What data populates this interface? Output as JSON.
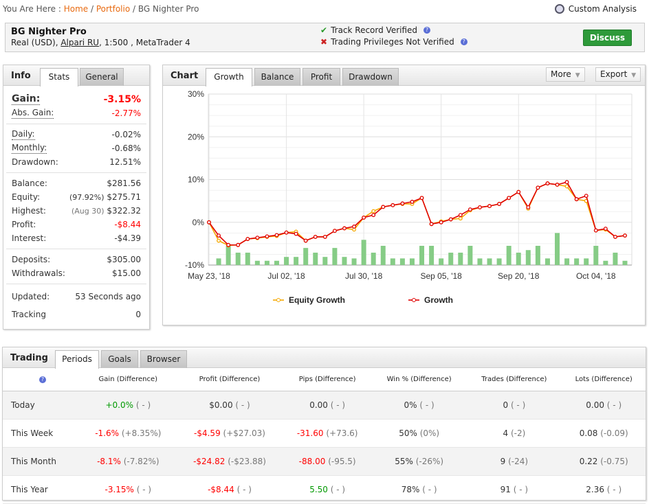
{
  "breadcrumb": {
    "prefix": "You Are Here :",
    "home": "Home",
    "portfolio": "Portfolio",
    "current": "BG Nighter Pro"
  },
  "custom_analysis": "Custom Analysis",
  "header": {
    "name": "BG Nighter Pro",
    "account": "Real (USD),",
    "broker": "Alpari RU",
    "details": ", 1:500 , MetaTrader 4",
    "track_record": "Track Record Verified",
    "privileges": "Trading Privileges Not Verified",
    "discuss": "Discuss"
  },
  "info": {
    "title": "Info",
    "tabs": [
      "Stats",
      "General"
    ],
    "gain_label": "Gain:",
    "gain": "-3.15%",
    "abs_gain_label": "Abs. Gain:",
    "abs_gain": "-2.77%",
    "daily_label": "Daily:",
    "daily": "-0.02%",
    "monthly_label": "Monthly:",
    "monthly": "-0.68%",
    "drawdown_label": "Drawdown:",
    "drawdown": "12.51%",
    "balance_label": "Balance:",
    "balance": "$281.56",
    "equity_label": "Equity:",
    "equity_pct": "(97.92%)",
    "equity": "$275.71",
    "highest_label": "Highest:",
    "highest_date": "(Aug 30)",
    "highest": "$322.32",
    "profit_label": "Profit:",
    "profit": "-$8.44",
    "interest_label": "Interest:",
    "interest": "-$4.39",
    "deposits_label": "Deposits:",
    "deposits": "$305.00",
    "withdrawals_label": "Withdrawals:",
    "withdrawals": "$15.00",
    "updated_label": "Updated:",
    "updated": "53 Seconds ago",
    "tracking_label": "Tracking",
    "tracking": "0"
  },
  "chart": {
    "title": "Chart",
    "tabs": [
      "Growth",
      "Balance",
      "Profit",
      "Drawdown"
    ],
    "more": "More",
    "export": "Export"
  },
  "chart_data": {
    "type": "line",
    "ylim": [
      -10,
      30
    ],
    "yticks": [
      "30%",
      "20%",
      "10%",
      "0%",
      "-10%"
    ],
    "ytick_values": [
      30,
      20,
      10,
      0,
      -10
    ],
    "xlabels": [
      "May 23, '18",
      "Jul 02, '18",
      "Jul 30, '18",
      "Sep 05, '18",
      "Sep 20, '18",
      "Oct 04, '18"
    ],
    "xlabel_indices": [
      0,
      8,
      16,
      24,
      32,
      40
    ],
    "series": [
      {
        "name": "Equity Growth",
        "color": "#f5a800",
        "values": [
          0,
          -4.3,
          -5.4,
          -5.3,
          -3.9,
          -3.7,
          -3.4,
          -3.2,
          -2.4,
          -2.2,
          -4.3,
          -3.4,
          -3.4,
          -2.0,
          -1.4,
          -1.7,
          1.1,
          2.6,
          3.6,
          4.0,
          4.3,
          4.3,
          5.7,
          -0.4,
          0.2,
          0.7,
          0.9,
          2.8,
          3.5,
          3.8,
          4.3,
          5.7,
          7.1,
          3.2,
          8.1,
          9.1,
          8.8,
          8.4,
          5.4,
          5.0,
          -1.9,
          -1.7,
          -3.4,
          -3.1
        ]
      },
      {
        "name": "Growth",
        "color": "#e00000",
        "values": [
          0,
          -3.1,
          -5.3,
          -5.3,
          -3.9,
          -3.6,
          -3.3,
          -3.0,
          -2.4,
          -2.7,
          -4.3,
          -3.4,
          -3.4,
          -2.0,
          -1.4,
          -1.0,
          1.1,
          1.7,
          3.6,
          4.0,
          4.4,
          4.8,
          5.7,
          -0.4,
          0.0,
          0.7,
          1.7,
          3.0,
          3.5,
          3.8,
          4.3,
          5.7,
          7.1,
          3.5,
          8.1,
          9.1,
          8.8,
          9.4,
          5.4,
          6.2,
          -1.9,
          -1.5,
          -3.4,
          -3.1
        ]
      }
    ],
    "bars": {
      "color": "#86cc86",
      "values": [
        null,
        1.55,
        4.5,
        2.9,
        2.9,
        1.0,
        1.0,
        1.0,
        1.9,
        1.9,
        4.0,
        2.9,
        1.9,
        4.0,
        1.9,
        1.55,
        5.9,
        2.9,
        4.5,
        1.55,
        1.55,
        1.55,
        4.5,
        4.5,
        1.55,
        2.9,
        2.9,
        4.5,
        1.55,
        1.55,
        1.55,
        4.5,
        2.9,
        3.5,
        4.5,
        1.55,
        7.5,
        1.55,
        1.55,
        1.55,
        4.5,
        1.0,
        2.9,
        1.0
      ]
    }
  },
  "trading": {
    "title": "Trading",
    "tabs": [
      "Periods",
      "Goals",
      "Browser"
    ],
    "columns": [
      "Gain (Difference)",
      "Profit (Difference)",
      "Pips (Difference)",
      "Win % (Difference)",
      "Trades (Difference)",
      "Lots (Difference)"
    ],
    "rows": [
      {
        "period": "Today",
        "cells": [
          [
            "+0.0%",
            "( - )",
            "g"
          ],
          [
            "$0.00",
            "( - )",
            ""
          ],
          [
            "0.00",
            "( - )",
            ""
          ],
          [
            "0%",
            "( - )",
            ""
          ],
          [
            "0",
            "( - )",
            ""
          ],
          [
            "0.00",
            "( - )",
            ""
          ]
        ]
      },
      {
        "period": "This Week",
        "cells": [
          [
            "-1.6%",
            "(+8.35%)",
            "r"
          ],
          [
            "-$4.59",
            "(+$27.03)",
            "r"
          ],
          [
            "-31.60",
            "(+73.6)",
            "r"
          ],
          [
            "50%",
            "(0%)",
            ""
          ],
          [
            "4",
            "(-2)",
            ""
          ],
          [
            "0.08",
            "(-0.09)",
            ""
          ]
        ]
      },
      {
        "period": "This Month",
        "cells": [
          [
            "-8.1%",
            "(-7.82%)",
            "r"
          ],
          [
            "-$24.82",
            "(-$23.88)",
            "r"
          ],
          [
            "-88.00",
            "(-95.5)",
            "r"
          ],
          [
            "55%",
            "(-26%)",
            ""
          ],
          [
            "9",
            "(-24)",
            ""
          ],
          [
            "0.22",
            "(-0.75)",
            ""
          ]
        ]
      },
      {
        "period": "This Year",
        "cells": [
          [
            "-3.15%",
            "( - )",
            "r"
          ],
          [
            "-$8.44",
            "( - )",
            "r"
          ],
          [
            "5.50",
            "( - )",
            "g"
          ],
          [
            "78%",
            "( - )",
            ""
          ],
          [
            "91",
            "( - )",
            ""
          ],
          [
            "2.36",
            "( - )",
            ""
          ]
        ]
      }
    ]
  }
}
